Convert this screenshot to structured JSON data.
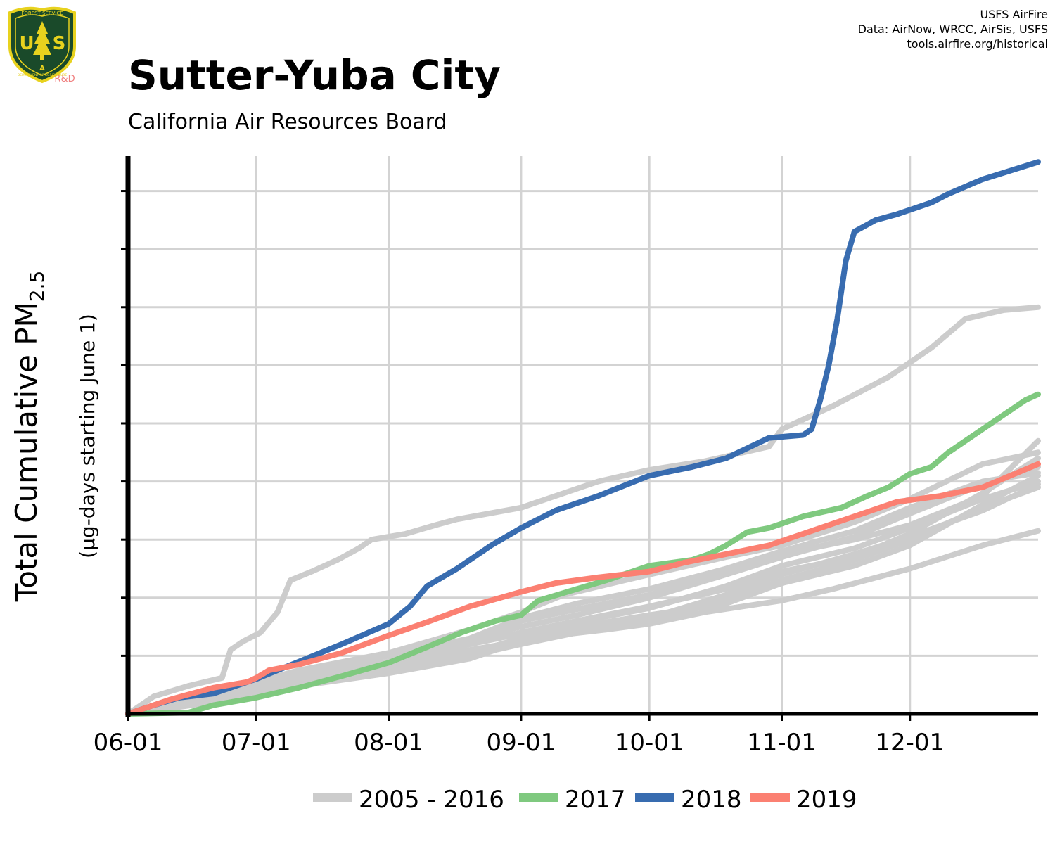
{
  "header": {
    "title": "Sutter-Yuba City",
    "subtitle": "California Air Resources Board",
    "credits": [
      "USFS AirFire",
      "Data: AirNow, WRCC, AirSis, USFS",
      "tools.airfire.org/historical"
    ]
  },
  "logo": {
    "top_text": "FOREST SERVICE",
    "letters": "USA",
    "bottom_text": "DEPARTMENT OF AGRICULTURE",
    "badge": "R&D",
    "colors": {
      "shield": "#1a4a2a",
      "trim": "#e8d21e",
      "badge": "#f08080"
    }
  },
  "chart_data": {
    "type": "line",
    "title": "Sutter-Yuba City",
    "subtitle": "California Air Resources Board",
    "ylabel_main": "Total Cumulative PM",
    "ylabel_sub": "2.5",
    "ylabel_units": "(µg-days starting June 1)",
    "x_unit": "days since June 1",
    "x_range": [
      0,
      213
    ],
    "y_range": [
      0,
      960
    ],
    "y_gridlines": [
      0,
      100,
      200,
      300,
      400,
      500,
      600,
      700,
      800,
      900
    ],
    "y_tick_labels_shown": false,
    "x_ticks": [
      {
        "day": 0,
        "label": "06-01"
      },
      {
        "day": 30,
        "label": "07-01"
      },
      {
        "day": 61,
        "label": "08-01"
      },
      {
        "day": 92,
        "label": "09-01"
      },
      {
        "day": 122,
        "label": "10-01"
      },
      {
        "day": 153,
        "label": "11-01"
      },
      {
        "day": 183,
        "label": "12-01"
      }
    ],
    "grid": true,
    "legend_position": "bottom",
    "legend": [
      {
        "label": "2005 - 2016",
        "color": "#cccccc"
      },
      {
        "label": "2017",
        "color": "#7fc97f"
      },
      {
        "label": "2018",
        "color": "#386cb0"
      },
      {
        "label": "2019",
        "color": "#fb8072"
      }
    ],
    "historical_series": [
      {
        "name": "2005 - 2016",
        "points": [
          [
            0,
            0
          ],
          [
            6,
            30
          ],
          [
            14,
            48
          ],
          [
            22,
            62
          ],
          [
            24,
            110
          ],
          [
            27,
            125
          ],
          [
            31,
            140
          ],
          [
            35,
            175
          ],
          [
            38,
            230
          ],
          [
            43,
            245
          ],
          [
            49,
            265
          ],
          [
            54,
            285
          ],
          [
            57,
            300
          ],
          [
            65,
            310
          ],
          [
            72,
            325
          ],
          [
            77,
            335
          ],
          [
            92,
            355
          ],
          [
            104,
            385
          ],
          [
            110,
            400
          ],
          [
            119,
            415
          ],
          [
            122,
            420
          ],
          [
            135,
            435
          ],
          [
            150,
            460
          ],
          [
            153,
            490
          ],
          [
            165,
            530
          ],
          [
            178,
            580
          ],
          [
            188,
            630
          ],
          [
            196,
            680
          ],
          [
            205,
            695
          ],
          [
            213,
            700
          ]
        ]
      },
      {
        "name": "2005 - 2016",
        "points": [
          [
            0,
            0
          ],
          [
            20,
            35
          ],
          [
            40,
            75
          ],
          [
            61,
            105
          ],
          [
            80,
            145
          ],
          [
            92,
            175
          ],
          [
            102,
            205
          ],
          [
            122,
            240
          ],
          [
            140,
            270
          ],
          [
            153,
            290
          ],
          [
            170,
            330
          ],
          [
            183,
            370
          ],
          [
            200,
            430
          ],
          [
            213,
            450
          ]
        ]
      },
      {
        "name": "2005 - 2016",
        "points": [
          [
            0,
            0
          ],
          [
            20,
            30
          ],
          [
            40,
            65
          ],
          [
            61,
            90
          ],
          [
            80,
            125
          ],
          [
            92,
            160
          ],
          [
            105,
            180
          ],
          [
            122,
            205
          ],
          [
            140,
            245
          ],
          [
            153,
            275
          ],
          [
            170,
            300
          ],
          [
            183,
            325
          ],
          [
            200,
            375
          ],
          [
            213,
            470
          ]
        ]
      },
      {
        "name": "2005 - 2016",
        "points": [
          [
            0,
            0
          ],
          [
            20,
            38
          ],
          [
            40,
            70
          ],
          [
            61,
            100
          ],
          [
            80,
            130
          ],
          [
            92,
            165
          ],
          [
            105,
            190
          ],
          [
            122,
            215
          ],
          [
            140,
            250
          ],
          [
            153,
            280
          ],
          [
            170,
            315
          ],
          [
            183,
            355
          ],
          [
            200,
            400
          ],
          [
            213,
            415
          ]
        ]
      },
      {
        "name": "2005 - 2016",
        "points": [
          [
            0,
            0
          ],
          [
            20,
            35
          ],
          [
            40,
            65
          ],
          [
            61,
            85
          ],
          [
            80,
            120
          ],
          [
            92,
            140
          ],
          [
            105,
            160
          ],
          [
            122,
            185
          ],
          [
            140,
            215
          ],
          [
            153,
            245
          ],
          [
            170,
            270
          ],
          [
            183,
            310
          ],
          [
            200,
            380
          ],
          [
            213,
            440
          ]
        ]
      },
      {
        "name": "2005 - 2016",
        "points": [
          [
            0,
            0
          ],
          [
            20,
            25
          ],
          [
            40,
            55
          ],
          [
            61,
            80
          ],
          [
            80,
            105
          ],
          [
            92,
            130
          ],
          [
            105,
            150
          ],
          [
            122,
            170
          ],
          [
            140,
            190
          ],
          [
            153,
            225
          ],
          [
            170,
            255
          ],
          [
            183,
            290
          ],
          [
            200,
            360
          ],
          [
            213,
            410
          ]
        ]
      },
      {
        "name": "2005 - 2016",
        "points": [
          [
            0,
            0
          ],
          [
            20,
            30
          ],
          [
            40,
            60
          ],
          [
            61,
            90
          ],
          [
            80,
            128
          ],
          [
            92,
            150
          ],
          [
            105,
            170
          ],
          [
            122,
            200
          ],
          [
            140,
            240
          ],
          [
            153,
            270
          ],
          [
            170,
            305
          ],
          [
            183,
            345
          ],
          [
            200,
            395
          ],
          [
            213,
            425
          ]
        ]
      },
      {
        "name": "2005 - 2016",
        "points": [
          [
            0,
            0
          ],
          [
            20,
            22
          ],
          [
            40,
            55
          ],
          [
            61,
            75
          ],
          [
            80,
            100
          ],
          [
            92,
            120
          ],
          [
            105,
            140
          ],
          [
            122,
            160
          ],
          [
            140,
            195
          ],
          [
            153,
            230
          ],
          [
            170,
            265
          ],
          [
            183,
            300
          ],
          [
            200,
            355
          ],
          [
            213,
            390
          ]
        ]
      },
      {
        "name": "2005 - 2016",
        "points": [
          [
            0,
            0
          ],
          [
            20,
            32
          ],
          [
            40,
            62
          ],
          [
            61,
            88
          ],
          [
            80,
            120
          ],
          [
            92,
            138
          ],
          [
            105,
            158
          ],
          [
            122,
            182
          ],
          [
            140,
            220
          ],
          [
            153,
            255
          ],
          [
            170,
            285
          ],
          [
            183,
            320
          ],
          [
            200,
            370
          ],
          [
            213,
            400
          ]
        ]
      },
      {
        "name": "2005 - 2016",
        "points": [
          [
            0,
            0
          ],
          [
            20,
            28
          ],
          [
            40,
            58
          ],
          [
            61,
            82
          ],
          [
            80,
            110
          ],
          [
            92,
            125
          ],
          [
            105,
            145
          ],
          [
            122,
            165
          ],
          [
            140,
            205
          ],
          [
            153,
            240
          ],
          [
            170,
            275
          ],
          [
            183,
            305
          ],
          [
            200,
            350
          ],
          [
            213,
            395
          ]
        ]
      },
      {
        "name": "2005 - 2016",
        "points": [
          [
            0,
            0
          ],
          [
            20,
            20
          ],
          [
            40,
            48
          ],
          [
            61,
            70
          ],
          [
            80,
            95
          ],
          [
            92,
            125
          ],
          [
            100,
            135
          ],
          [
            112,
            145
          ],
          [
            122,
            155
          ],
          [
            135,
            175
          ],
          [
            153,
            195
          ],
          [
            165,
            215
          ],
          [
            183,
            250
          ],
          [
            200,
            290
          ],
          [
            213,
            315
          ]
        ]
      }
    ],
    "series": [
      {
        "name": "2017",
        "color": "#7fc97f",
        "points": [
          [
            0,
            0
          ],
          [
            14,
            2
          ],
          [
            20,
            15
          ],
          [
            30,
            28
          ],
          [
            40,
            45
          ],
          [
            50,
            65
          ],
          [
            61,
            88
          ],
          [
            70,
            115
          ],
          [
            78,
            140
          ],
          [
            86,
            160
          ],
          [
            92,
            170
          ],
          [
            96,
            195
          ],
          [
            105,
            215
          ],
          [
            112,
            230
          ],
          [
            122,
            255
          ],
          [
            132,
            265
          ],
          [
            136,
            275
          ],
          [
            140,
            290
          ],
          [
            145,
            313
          ],
          [
            150,
            320
          ],
          [
            158,
            340
          ],
          [
            167,
            355
          ],
          [
            173,
            375
          ],
          [
            178,
            390
          ],
          [
            183,
            413
          ],
          [
            188,
            425
          ],
          [
            192,
            450
          ],
          [
            200,
            490
          ],
          [
            210,
            540
          ],
          [
            213,
            550
          ]
        ]
      },
      {
        "name": "2018",
        "color": "#386cb0",
        "points": [
          [
            0,
            0
          ],
          [
            6,
            15
          ],
          [
            12,
            28
          ],
          [
            20,
            35
          ],
          [
            30,
            60
          ],
          [
            40,
            90
          ],
          [
            50,
            120
          ],
          [
            61,
            155
          ],
          [
            66,
            185
          ],
          [
            70,
            220
          ],
          [
            77,
            250
          ],
          [
            85,
            290
          ],
          [
            92,
            320
          ],
          [
            100,
            350
          ],
          [
            110,
            375
          ],
          [
            122,
            410
          ],
          [
            132,
            425
          ],
          [
            140,
            440
          ],
          [
            150,
            475
          ],
          [
            158,
            480
          ],
          [
            160,
            490
          ],
          [
            162,
            540
          ],
          [
            164,
            600
          ],
          [
            166,
            680
          ],
          [
            168,
            780
          ],
          [
            170,
            830
          ],
          [
            175,
            850
          ],
          [
            180,
            860
          ],
          [
            188,
            880
          ],
          [
            192,
            895
          ],
          [
            200,
            920
          ],
          [
            213,
            950
          ]
        ]
      },
      {
        "name": "2019",
        "color": "#fb8072",
        "points": [
          [
            0,
            0
          ],
          [
            10,
            25
          ],
          [
            20,
            45
          ],
          [
            28,
            55
          ],
          [
            30,
            62
          ],
          [
            33,
            75
          ],
          [
            40,
            85
          ],
          [
            50,
            105
          ],
          [
            61,
            135
          ],
          [
            70,
            158
          ],
          [
            80,
            185
          ],
          [
            92,
            210
          ],
          [
            100,
            225
          ],
          [
            110,
            235
          ],
          [
            122,
            245
          ],
          [
            130,
            260
          ],
          [
            140,
            275
          ],
          [
            150,
            290
          ],
          [
            160,
            315
          ],
          [
            170,
            340
          ],
          [
            180,
            365
          ],
          [
            190,
            375
          ],
          [
            200,
            390
          ],
          [
            213,
            430
          ]
        ]
      }
    ]
  }
}
